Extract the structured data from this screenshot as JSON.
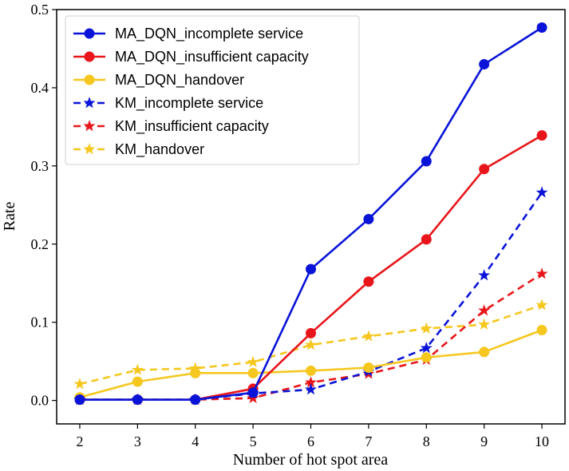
{
  "chart_data": {
    "type": "line",
    "title": "",
    "xlabel": "Number of hot spot area",
    "ylabel": "Rate",
    "x": [
      2,
      3,
      4,
      5,
      6,
      7,
      8,
      9,
      10
    ],
    "xlim": [
      1.6,
      10.4
    ],
    "ylim": [
      -0.03,
      0.5
    ],
    "yticks": [
      0.0,
      0.1,
      0.2,
      0.3,
      0.4,
      0.5
    ],
    "ytick_labels": [
      "0.0",
      "0.1",
      "0.2",
      "0.3",
      "0.4",
      "0.5"
    ],
    "xtick_labels": [
      "2",
      "3",
      "4",
      "5",
      "6",
      "7",
      "8",
      "9",
      "10"
    ],
    "grid": false,
    "legend_position": "top-left",
    "series": [
      {
        "name": "MA_DQN_incomplete service",
        "color": "#0a14d8",
        "style": "solid",
        "marker": "circle",
        "values": [
          0.001,
          0.001,
          0.001,
          0.01,
          0.168,
          0.232,
          0.306,
          0.43,
          0.477
        ]
      },
      {
        "name": "MA_DQN_insufficient capacity",
        "color": "#e8161a",
        "style": "solid",
        "marker": "circle",
        "values": [
          0.001,
          0.001,
          0.001,
          0.015,
          0.086,
          0.152,
          0.206,
          0.296,
          0.339
        ]
      },
      {
        "name": "MA_DQN_handover",
        "color": "#f5c71f",
        "style": "solid",
        "marker": "circle",
        "values": [
          0.004,
          0.024,
          0.035,
          0.035,
          0.038,
          0.042,
          0.055,
          0.062,
          0.09
        ]
      },
      {
        "name": "KM_incomplete service",
        "color": "#0a14d8",
        "style": "dashed",
        "marker": "star",
        "values": [
          0.001,
          0.001,
          0.001,
          0.009,
          0.014,
          0.037,
          0.067,
          0.16,
          0.266
        ]
      },
      {
        "name": "KM_insufficient capacity",
        "color": "#e8161a",
        "style": "dashed",
        "marker": "star",
        "values": [
          0.001,
          0.001,
          0.001,
          0.003,
          0.023,
          0.034,
          0.052,
          0.115,
          0.162
        ]
      },
      {
        "name": "KM_handover",
        "color": "#f5c71f",
        "style": "dashed",
        "marker": "star",
        "values": [
          0.021,
          0.039,
          0.041,
          0.049,
          0.071,
          0.082,
          0.092,
          0.097,
          0.122
        ]
      }
    ]
  }
}
